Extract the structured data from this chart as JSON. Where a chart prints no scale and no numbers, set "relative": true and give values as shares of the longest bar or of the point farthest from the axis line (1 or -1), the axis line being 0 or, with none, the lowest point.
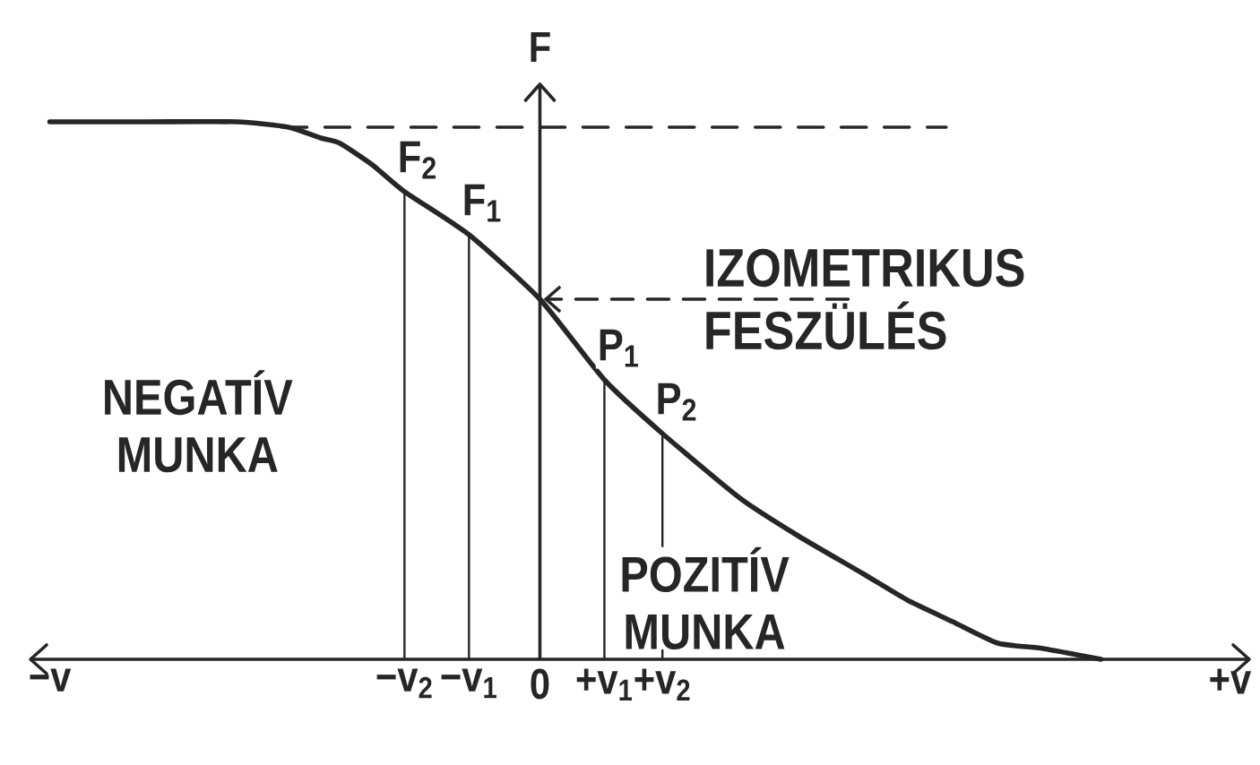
{
  "chart_data": {
    "type": "line",
    "relative": true,
    "ylabel": "F",
    "xlim": [
      -7.9,
      11.0
    ],
    "xticks": [
      {
        "value": -7.6,
        "label": "−v"
      },
      {
        "value": -2.1,
        "label": "−v$_{2}$"
      },
      {
        "value": -1.1,
        "label": "−v$_{1}$"
      },
      0,
      {
        "value": 1,
        "label": "+v$_{1}$"
      },
      {
        "value": 1.9,
        "label": "+v$_{2}$"
      },
      {
        "value": 10.7,
        "label": "+v"
      }
    ],
    "series": [
      {
        "color": "#262626",
        "x": [
          -7.6,
          -6.1,
          -4.7,
          -3.9,
          -3.4,
          -3.1,
          -2.6,
          -2.1,
          -1.1,
          0,
          1,
          1.9,
          3.1,
          4.0,
          5.0,
          5.7,
          6.4,
          7.1,
          7.8,
          8.7
        ],
        "values": [
          1,
          1,
          1,
          0.99,
          0.97,
          0.96,
          0.92,
          0.87,
          0.79,
          0.67,
          0.52,
          0.42,
          0.3,
          0.23,
          0.16,
          0.11,
          0.07,
          0.03,
          0.02,
          0
        ]
      },
      {
        "color": "#262626",
        "line_style": "dashed",
        "x": [
          -4.0,
          6.3
        ],
        "values": [
          0.99,
          0.99
        ]
      },
      {
        "color": "#262626",
        "x": [
          -2.1,
          -2.1
        ],
        "values": [
          0,
          0.87
        ]
      },
      {
        "color": "#262626",
        "x": [
          -1.1,
          -1.1
        ],
        "values": [
          0,
          0.79
        ]
      },
      {
        "color": "#262626",
        "x": [
          1,
          1
        ],
        "values": [
          0,
          0.52
        ]
      },
      {
        "color": "#262626",
        "x": [
          1.9,
          1.9
        ],
        "values": [
          0,
          0.42
        ]
      }
    ],
    "annotations": [
      {
        "text": "F$_{2}$",
        "x": -2.1,
        "y": 0.87
      },
      {
        "text": "F$_{1}$",
        "x": -1.1,
        "y": 0.79
      },
      {
        "text": "P$_{1}$",
        "x": 1,
        "y": 0.52
      },
      {
        "text": "P$_{2}$",
        "x": 1.9,
        "y": 0.42
      },
      {
        "text": "IZOMETRIKUS FESZÜLÉS",
        "x": 0,
        "y": 0.67
      },
      "NEGATÍV MUNKA",
      "POZITÍV MUNKA"
    ]
  }
}
